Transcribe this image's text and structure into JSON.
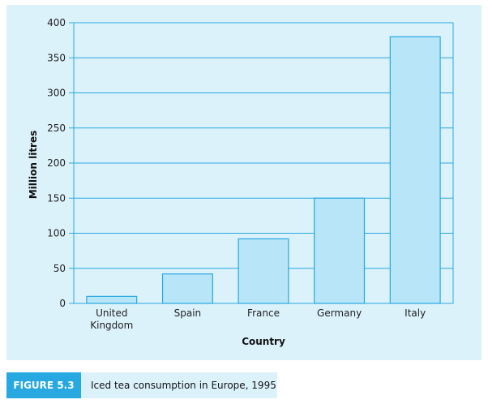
{
  "figure": {
    "label": "FIGURE 5.3",
    "caption": "Iced tea consumption in Europe, 1995"
  },
  "chart_data": {
    "type": "bar",
    "categories": [
      "United Kingdom",
      "Spain",
      "France",
      "Germany",
      "Italy"
    ],
    "category_display_lines": [
      [
        "United",
        "Kingdom"
      ],
      [
        "Spain"
      ],
      [
        "France"
      ],
      [
        "Germany"
      ],
      [
        "Italy"
      ]
    ],
    "values": [
      10,
      42,
      92,
      150,
      380
    ],
    "xlabel": "Country",
    "ylabel": "Million litres",
    "ylim": [
      0,
      400
    ],
    "yticks": [
      0,
      50,
      100,
      150,
      200,
      250,
      300,
      350,
      400
    ],
    "grid": true,
    "legend": "none",
    "colors": {
      "bar_fill": "#b8e5f8",
      "bar_stroke": "#27a8e0",
      "grid": "#27a8e0",
      "panel_bg": "#dcf2fb"
    }
  }
}
